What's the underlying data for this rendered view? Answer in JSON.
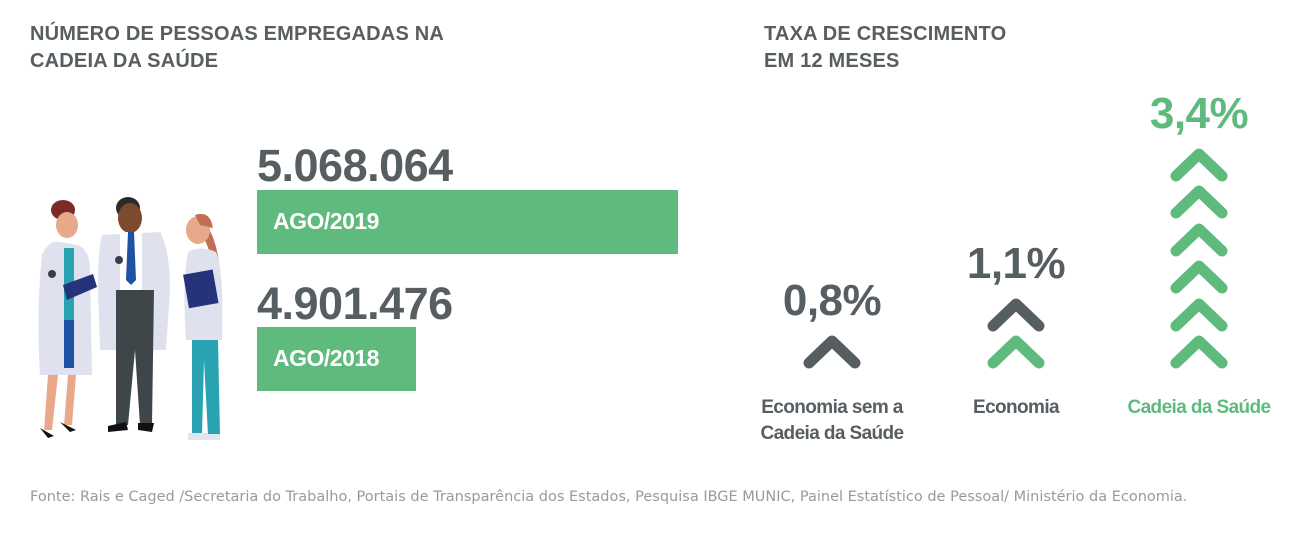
{
  "left": {
    "title_line1": "NÚMERO DE PESSOAS EMPREGADAS NA",
    "title_line2": "CADEIA DA SAÚDE",
    "illustration": "three-health-professionals"
  },
  "right": {
    "title_line1": "TAXA DE CRESCIMENTO",
    "title_line2": "EM 12 MESES"
  },
  "colors": {
    "green": "#5fba7d",
    "grey": "#575e62"
  },
  "chart_data": [
    {
      "type": "bar",
      "orientation": "horizontal",
      "categories": [
        "AGO/2019",
        "AGO/2018"
      ],
      "values": [
        5068064,
        4901476
      ],
      "value_labels": [
        "5.068.064",
        "4.901.476"
      ]
    },
    {
      "type": "bar",
      "style": "chevron-pictogram",
      "categories": [
        "Economia sem a Cadeia da Saúde",
        "Economia",
        "Cadeia da Saúde"
      ],
      "values": [
        0.8,
        1.1,
        3.4
      ],
      "value_labels": [
        "0,8%",
        "1,1%",
        "3,4%"
      ],
      "unit": "%",
      "items": [
        {
          "label_line1": "Economia sem a",
          "label_line2": "Cadeia da Saúde",
          "value_label": "0,8%",
          "color": "#575e62",
          "chevrons": [
            "#575e62"
          ]
        },
        {
          "label_line1": "Economia",
          "label_line2": "",
          "value_label": "1,1%",
          "color": "#575e62",
          "chevrons": [
            "#575e62",
            "#5fba7d"
          ]
        },
        {
          "label_line1": "Cadeia da Saúde",
          "label_line2": "",
          "value_label": "3,4%",
          "color": "#5fba7d",
          "chevrons": [
            "#5fba7d",
            "#5fba7d",
            "#5fba7d",
            "#5fba7d",
            "#5fba7d",
            "#5fba7d"
          ]
        }
      ]
    }
  ],
  "footer": {
    "source": "Fonte: Rais e Caged /Secretaria do Trabalho, Portais de Transparência dos Estados, Pesquisa IBGE MUNIC, Painel Estatístico de Pessoal/ Ministério da Economia."
  }
}
